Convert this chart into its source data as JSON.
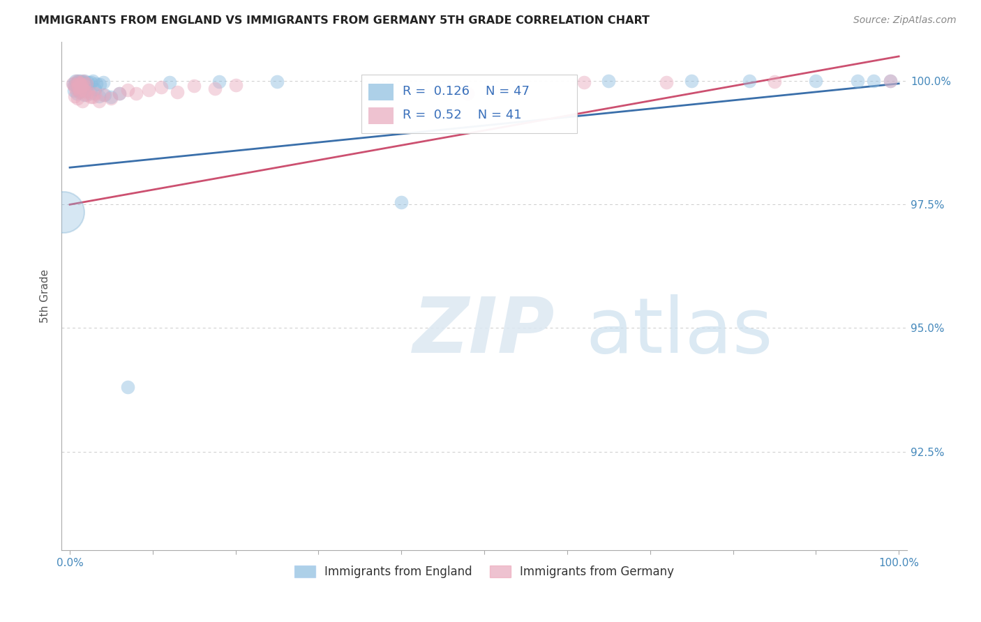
{
  "title": "IMMIGRANTS FROM ENGLAND VS IMMIGRANTS FROM GERMANY 5TH GRADE CORRELATION CHART",
  "source": "Source: ZipAtlas.com",
  "ylabel": "5th Grade",
  "legend_labels": [
    "Immigrants from England",
    "Immigrants from Germany"
  ],
  "color_england": "#8bbcdf",
  "color_germany": "#e8a8bc",
  "line_color_england": "#3a6faa",
  "line_color_germany": "#cc5070",
  "R_england": 0.126,
  "N_england": 47,
  "R_germany": 0.52,
  "N_germany": 41,
  "xlim": [
    0.0,
    1.0
  ],
  "ylim": [
    0.905,
    1.008
  ],
  "yticks": [
    0.925,
    0.95,
    0.975,
    1.0
  ],
  "ytick_labels": [
    "92.5%",
    "95.0%",
    "97.5%",
    "100.0%"
  ],
  "xtick_labels": [
    "0.0%",
    "100.0%"
  ],
  "xticks": [
    0.0,
    1.0
  ],
  "background_color": "#ffffff",
  "grid_color": "#cccccc",
  "watermark_text": "ZIPatlas",
  "watermark_color": "#d8e8f0"
}
